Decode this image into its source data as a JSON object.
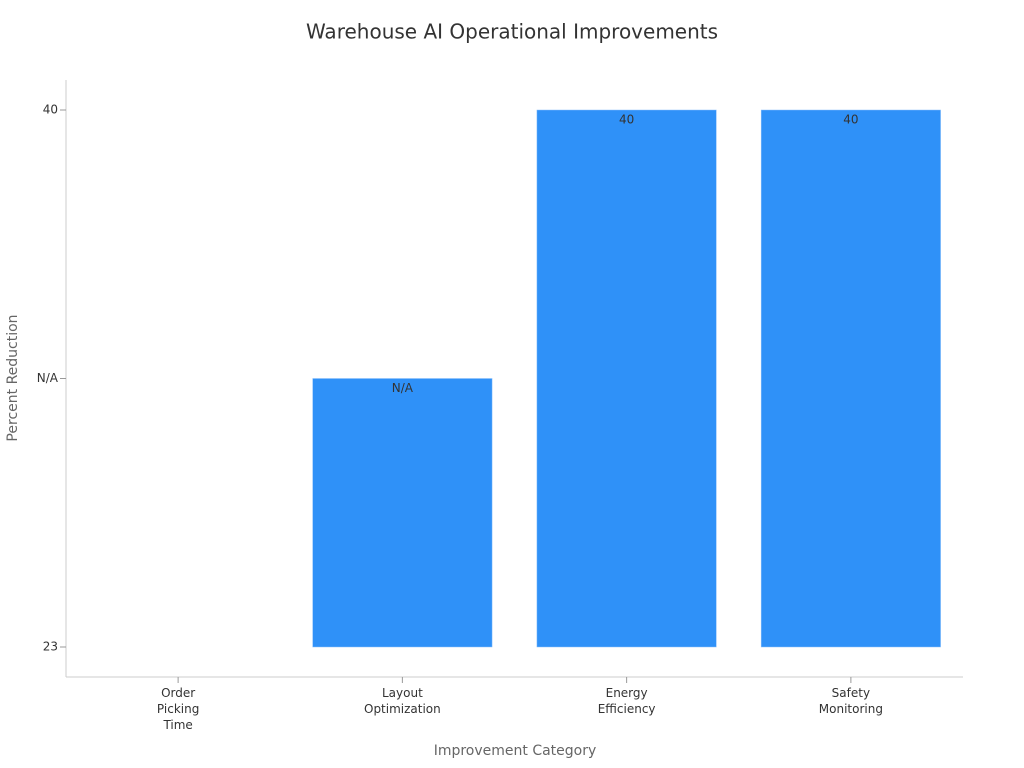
{
  "chart_data": {
    "type": "bar",
    "title": "Warehouse AI Operational Improvements",
    "xlabel": "Improvement Category",
    "ylabel": "Percent Reduction",
    "categories": [
      "Order Picking Time",
      "Layout Optimization",
      "Energy Efficiency",
      "Safety Monitoring"
    ],
    "values": [
      23,
      "N/A",
      40,
      40
    ],
    "yaxis_type": "category",
    "yticks": [
      23,
      "N/A",
      40
    ],
    "color": "#2f91f8"
  }
}
